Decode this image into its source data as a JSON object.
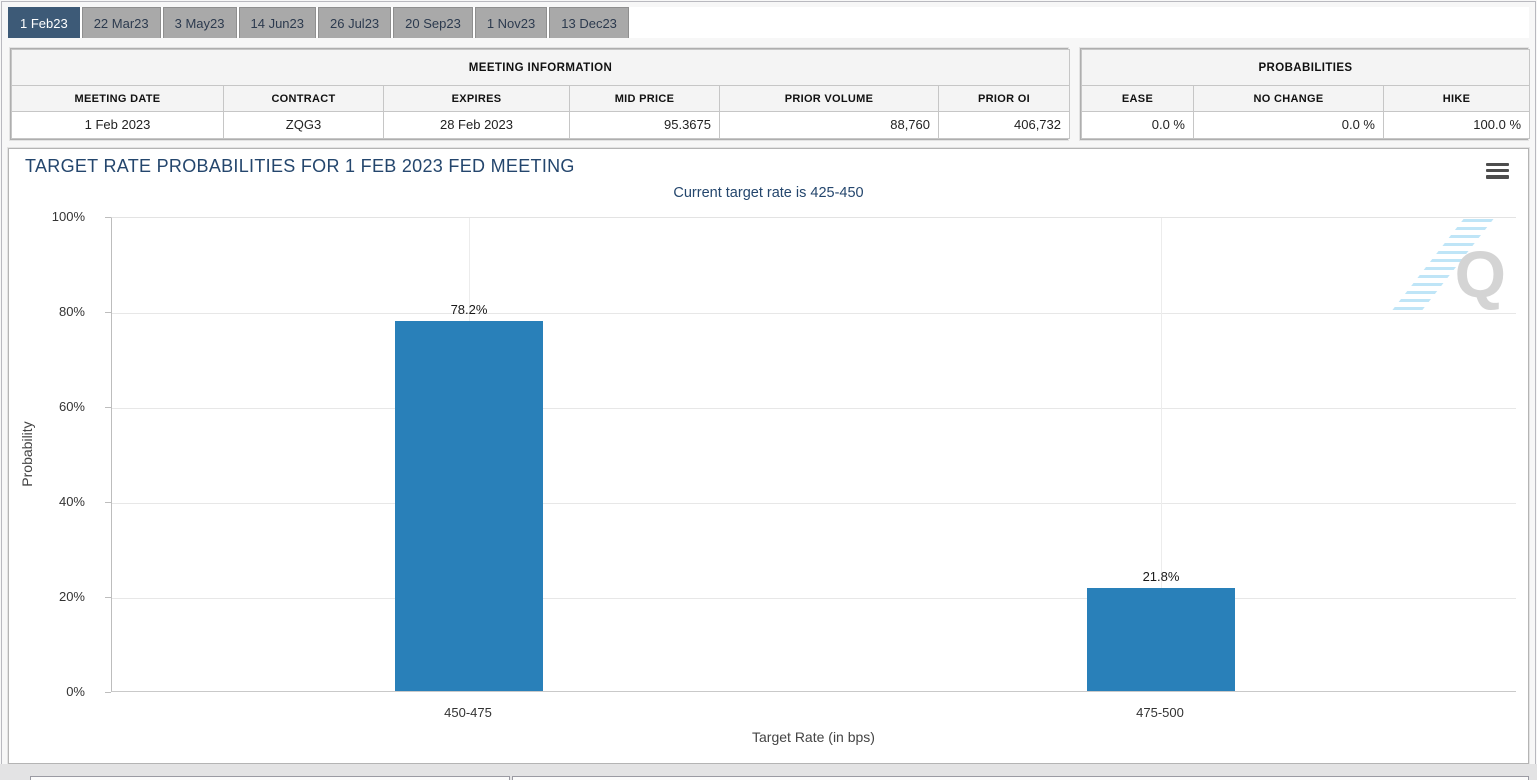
{
  "tabs": [
    {
      "label": "1 Feb23",
      "active": true
    },
    {
      "label": "22 Mar23",
      "active": false
    },
    {
      "label": "3 May23",
      "active": false
    },
    {
      "label": "14 Jun23",
      "active": false
    },
    {
      "label": "26 Jul23",
      "active": false
    },
    {
      "label": "20 Sep23",
      "active": false
    },
    {
      "label": "1 Nov23",
      "active": false
    },
    {
      "label": "13 Dec23",
      "active": false
    }
  ],
  "meeting_info": {
    "title": "MEETING INFORMATION",
    "columns": [
      "MEETING DATE",
      "CONTRACT",
      "EXPIRES",
      "MID PRICE",
      "PRIOR VOLUME",
      "PRIOR OI"
    ],
    "values": {
      "meeting_date": "1 Feb 2023",
      "contract": "ZQG3",
      "expires": "28 Feb 2023",
      "mid_price": "95.3675",
      "prior_volume": "88,760",
      "prior_oi": "406,732"
    }
  },
  "probabilities": {
    "title": "PROBABILITIES",
    "columns": [
      "EASE",
      "NO CHANGE",
      "HIKE"
    ],
    "values": {
      "ease": "0.0 %",
      "no_change": "0.0 %",
      "hike": "100.0 %"
    }
  },
  "chart": {
    "title": "TARGET RATE PROBABILITIES FOR 1 FEB 2023 FED MEETING",
    "subtitle": "Current target rate is 425-450",
    "menu_icon": "hamburger-menu-icon",
    "watermark_letter": "Q"
  },
  "chart_data": {
    "type": "bar",
    "categories": [
      "450-475",
      "475-500"
    ],
    "values": [
      78.2,
      21.8
    ],
    "labels": [
      "78.2%",
      "21.8%"
    ],
    "title": "TARGET RATE PROBABILITIES FOR 1 FEB 2023 FED MEETING",
    "subtitle": "Current target rate is 425-450",
    "xlabel": "Target Rate (in bps)",
    "ylabel": "Probability",
    "ylim": [
      0,
      100
    ],
    "yticks": [
      "0%",
      "20%",
      "40%",
      "60%",
      "80%",
      "100%"
    ],
    "grid": true,
    "legend": false,
    "bar_color": "#2980b9"
  },
  "colors": {
    "active_tab_bg": "#3d5a77",
    "inactive_tab_bg": "#a9a9a9",
    "bar": "#2980b9",
    "chart_title_text": "#24466d",
    "table_header_bg": "#f4f4f4"
  }
}
